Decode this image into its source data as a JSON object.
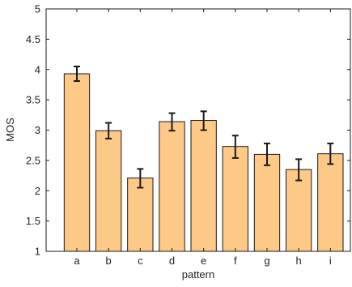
{
  "chart_data": {
    "type": "bar",
    "categories": [
      "a",
      "b",
      "c",
      "d",
      "e",
      "f",
      "g",
      "h",
      "i"
    ],
    "values": [
      3.93,
      2.99,
      2.21,
      3.14,
      3.16,
      2.73,
      2.6,
      2.35,
      2.61
    ],
    "error_low": [
      3.81,
      2.86,
      2.05,
      2.99,
      3.0,
      2.54,
      2.42,
      2.17,
      2.44
    ],
    "error_high": [
      4.05,
      3.12,
      2.36,
      3.28,
      3.31,
      2.91,
      2.78,
      2.52,
      2.78
    ],
    "xlabel": "pattern",
    "ylabel": "MOS",
    "ylim": [
      1,
      5
    ],
    "yticks": [
      "1",
      "1.5",
      "2",
      "2.5",
      "3",
      "3.5",
      "4",
      "4.5",
      "5"
    ],
    "grid": false,
    "colors": {
      "bar_fill": "#FDC987",
      "bar_stroke": "#1a1a1a",
      "error_bar": "#1a1a1a",
      "axis": "#1a1a1a"
    }
  }
}
